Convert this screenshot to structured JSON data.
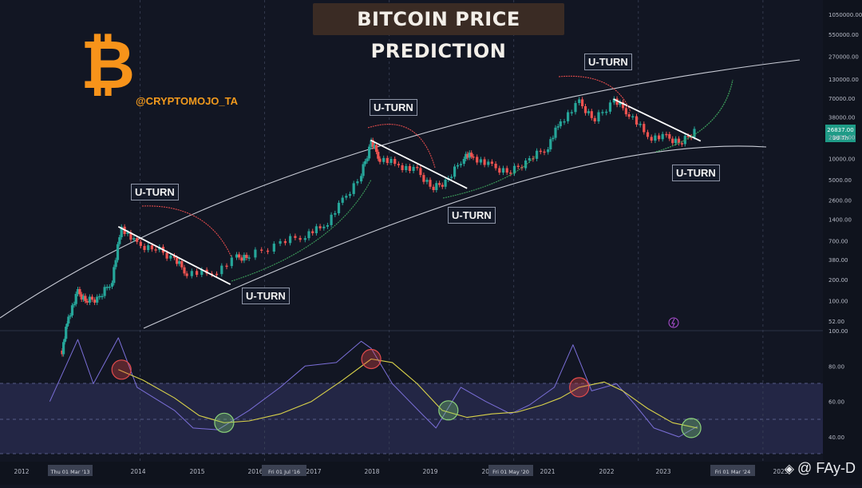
{
  "title": "BITCOIN PRICE PREDICTION",
  "logo_symbol": "₿",
  "handle": "@CRYPTOMOJO_TA",
  "watermark": {
    "text": "@ FAy-D",
    "icon": "diamond-icon"
  },
  "annotations": [
    "U-TURN",
    "U-TURN",
    "U-TURN",
    "U-TURN",
    "U-TURN",
    "U-TURN"
  ],
  "colors": {
    "bg": "#121623",
    "up": "#26a69a",
    "down": "#ef5350",
    "logo": "#f7931a",
    "rsi": "#7b6fd8",
    "ma": "#d9d24a",
    "band": "#2a2c52"
  },
  "price_axis": [
    "1050000.00",
    "550000.00",
    "270000.00",
    "130000.00",
    "70000.00",
    "38000.00",
    "20000.00",
    "10000.00",
    "5000.00",
    "2600.00",
    "1400.00",
    "700.00",
    "380.00",
    "200.00",
    "100.00",
    "52.00"
  ],
  "price_tag": {
    "value": "26837.00",
    "countdown": "3d 7h"
  },
  "rsi_axis": [
    "100.00",
    "80.00",
    "60.00",
    "40.00"
  ],
  "time_axis": [
    "2012",
    "Thu 01 Mar '13",
    "2014",
    "2015",
    "2016",
    "Fri 01 Jul '16",
    "2017",
    "2018",
    "2019",
    "2020",
    "Fri 01 May '20",
    "2021",
    "2022",
    "2023",
    "2024",
    "Fri 01 Mar '24",
    "2025"
  ],
  "chart_data": {
    "type": "line",
    "title": "BITCOIN PRICE PREDICTION",
    "scale": "log",
    "ylim": [
      52,
      1050000
    ],
    "xlim": [
      2012,
      2025.2
    ],
    "series": [
      {
        "name": "BTC price (approx)",
        "x": [
          2013.0,
          2013.1,
          2013.25,
          2013.4,
          2013.6,
          2013.8,
          2013.95,
          2014.2,
          2014.5,
          2014.8,
          2015.0,
          2015.4,
          2015.8,
          2016.0,
          2016.5,
          2016.9,
          2017.2,
          2017.5,
          2017.8,
          2017.96,
          2018.1,
          2018.4,
          2018.7,
          2018.96,
          2019.2,
          2019.45,
          2019.6,
          2019.9,
          2020.2,
          2020.5,
          2020.8,
          2021.0,
          2021.3,
          2021.55,
          2021.86,
          2022.1,
          2022.4,
          2022.7,
          2022.95,
          2023.2
        ],
        "values": [
          20,
          60,
          130,
          100,
          110,
          200,
          1100,
          600,
          550,
          380,
          250,
          240,
          400,
          430,
          650,
          850,
          1100,
          2500,
          6000,
          17000,
          10000,
          8000,
          6500,
          3800,
          5000,
          11000,
          10500,
          7500,
          6500,
          9500,
          15000,
          33000,
          60000,
          35000,
          65000,
          43000,
          20000,
          19500,
          16800,
          26837
        ]
      },
      {
        "name": "RSI",
        "x": [
          2012.8,
          2013.25,
          2013.5,
          2013.9,
          2014.2,
          2014.8,
          2015.1,
          2015.5,
          2016.0,
          2016.5,
          2016.9,
          2017.4,
          2017.8,
          2017.96,
          2018.3,
          2018.8,
          2019.0,
          2019.4,
          2019.8,
          2020.2,
          2020.5,
          2020.9,
          2021.2,
          2021.5,
          2021.9,
          2022.2,
          2022.5,
          2022.9,
          2023.2
        ],
        "values": [
          60,
          95,
          70,
          96,
          68,
          55,
          45,
          44,
          55,
          68,
          80,
          82,
          94,
          90,
          70,
          52,
          45,
          68,
          60,
          53,
          58,
          68,
          92,
          66,
          70,
          58,
          45,
          40,
          46
        ]
      },
      {
        "name": "RSI MA",
        "x": [
          2013.9,
          2014.3,
          2014.8,
          2015.2,
          2015.6,
          2016.0,
          2016.5,
          2017.0,
          2017.5,
          2017.96,
          2018.3,
          2018.7,
          2019.1,
          2019.5,
          2019.9,
          2020.3,
          2020.7,
          2021.0,
          2021.3,
          2021.7,
          2022.0,
          2022.4,
          2022.8,
          2023.2
        ],
        "values": [
          78,
          72,
          62,
          52,
          48,
          49,
          53,
          60,
          72,
          84,
          82,
          70,
          55,
          51,
          53,
          54,
          58,
          62,
          68,
          71,
          66,
          56,
          48,
          45
        ]
      }
    ],
    "markers": {
      "red_circles": [
        2013.95,
        2017.96,
        2021.3
      ],
      "green_circles": [
        2015.6,
        2019.2,
        2023.1
      ]
    }
  }
}
